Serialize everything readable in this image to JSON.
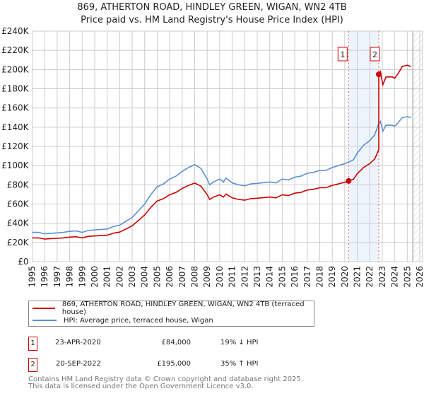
{
  "title": "869, ATHERTON ROAD, HINDLEY GREEN, WIGAN, WN2 4TB",
  "subtitle": "Price paid vs. HM Land Registry's House Price Index (HPI)",
  "colors": {
    "property": "#cc0000",
    "hpi": "#5b8fd0",
    "band": "#eef4fc"
  },
  "chart_data": {
    "type": "line",
    "title": "869, ATHERTON ROAD, HINDLEY GREEN, WIGAN, WN2 4TB",
    "xlim": [
      1995,
      2026
    ],
    "ylim": [
      0,
      240000
    ],
    "x_ticks": [
      "1995",
      "1996",
      "1997",
      "1998",
      "1999",
      "2000",
      "2001",
      "2002",
      "2003",
      "2004",
      "2005",
      "2006",
      "2007",
      "2008",
      "2009",
      "2010",
      "2011",
      "2012",
      "2013",
      "2014",
      "2015",
      "2016",
      "2017",
      "2018",
      "2019",
      "2020",
      "2021",
      "2022",
      "2023",
      "2024",
      "2025",
      "2026"
    ],
    "y_ticks": [
      "£0",
      "£20K",
      "£40K",
      "£60K",
      "£80K",
      "£100K",
      "£120K",
      "£140K",
      "£160K",
      "£180K",
      "£200K",
      "£220K",
      "£240K"
    ],
    "grid": true,
    "hpi_series": {
      "name": "HPI: Average price, terraced house, Wigan",
      "x": [
        1995,
        1995.5,
        1996,
        1996.5,
        1997,
        1997.5,
        1998,
        1998.5,
        1999,
        1999.5,
        2000,
        2000.5,
        2001,
        2001.5,
        2002,
        2002.5,
        2003,
        2003.5,
        2004,
        2004.5,
        2005,
        2005.5,
        2006,
        2006.5,
        2007,
        2007.5,
        2008,
        2008.5,
        2009,
        2009.2,
        2009.5,
        2010,
        2010.3,
        2010.5,
        2011,
        2011.5,
        2012,
        2012.5,
        2013,
        2014,
        2014.5,
        2015,
        2015.5,
        2016,
        2016.5,
        2017,
        2017.5,
        2018,
        2018.5,
        2019,
        2019.5,
        2020,
        2020.31,
        2020.7,
        2021,
        2021.5,
        2022,
        2022.4,
        2022.72,
        2022.85,
        2023.05,
        2023.3,
        2023.8,
        2024,
        2024.3,
        2024.6,
        2025,
        2025.3
      ],
      "y": [
        30500,
        30500,
        29000,
        29500,
        30000,
        30500,
        31500,
        32000,
        30500,
        32500,
        33000,
        33500,
        34000,
        36500,
        38000,
        42000,
        46000,
        53000,
        60000,
        70000,
        78000,
        81000,
        86000,
        89000,
        94000,
        98000,
        101000,
        97000,
        86000,
        80000,
        83000,
        86000,
        83000,
        87000,
        82000,
        80000,
        79000,
        81000,
        81500,
        83000,
        82000,
        86000,
        85000,
        88000,
        89000,
        92000,
        93000,
        95000,
        95000,
        98000,
        100000,
        102000,
        103700,
        106000,
        113000,
        121000,
        126000,
        132000,
        144000,
        146000,
        136000,
        142000,
        142000,
        141000,
        145000,
        150000,
        151000,
        150000
      ]
    },
    "property_series": {
      "name": "869, ATHERTON ROAD, HINDLEY GREEN, WIGAN, WN2 4TB (terraced house)"
    },
    "sales": [
      {
        "id": "1",
        "x": 2020.31,
        "price": 84000,
        "date": "23-APR-2020",
        "price_label": "£84,000",
        "hpi_diff": "19% ↓ HPI"
      },
      {
        "id": "2",
        "x": 2022.72,
        "price": 195000,
        "date": "20-SEP-2022",
        "price_label": "£195,000",
        "hpi_diff": "35% ↑ HPI"
      }
    ],
    "forecast_from": 2025.5
  },
  "legend": {
    "property_label": "869, ATHERTON ROAD, HINDLEY GREEN, WIGAN, WN2 4TB (terraced house)",
    "hpi_label": "HPI: Average price, terraced house, Wigan"
  },
  "footer": {
    "line1": "Contains HM Land Registry data © Crown copyright and database right 2025.",
    "line2": "This data is licensed under the Open Government Licence v3.0."
  }
}
